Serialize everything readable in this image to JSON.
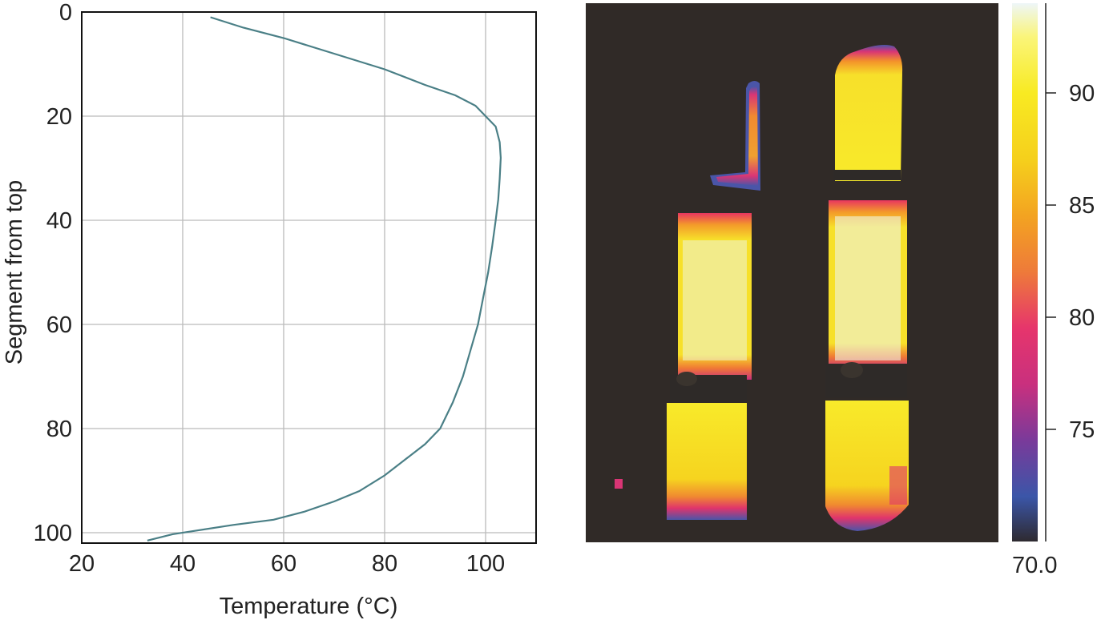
{
  "chart_data": [
    {
      "type": "line",
      "title": "",
      "xlabel": "Temperature (°C)",
      "ylabel": "Segment from top",
      "xlim": [
        20,
        110
      ],
      "ylim": [
        102,
        0
      ],
      "y_inverted": true,
      "grid": true,
      "xticks": [
        20,
        40,
        60,
        80,
        100
      ],
      "yticks": [
        0,
        20,
        40,
        60,
        80,
        100
      ],
      "line_color": "#4a7f86",
      "series": [
        {
          "x": [
            45.5,
            52,
            60,
            70,
            80,
            88,
            94,
            98,
            100,
            102,
            102.8,
            103,
            102.8,
            102.5,
            102,
            101.3,
            100.5,
            99.5,
            98.5,
            97,
            95.5,
            93.5,
            91,
            88,
            84,
            80,
            75,
            70,
            64,
            58,
            50,
            42,
            38,
            33
          ],
          "y": [
            1,
            3,
            5,
            8,
            11,
            14,
            16,
            18,
            20,
            22,
            25,
            28,
            32,
            36,
            40,
            45,
            50,
            55,
            60,
            65,
            70,
            75,
            80,
            83,
            86,
            89,
            92,
            94,
            96,
            97.5,
            98.5,
            99.7,
            100.3,
            101.5
          ]
        }
      ]
    },
    {
      "type": "heatmap",
      "title": "",
      "description_colors": [
        "#2f2a28",
        "#3b4fa8",
        "#9b2a86",
        "#d8256a",
        "#f08a1f",
        "#f6d21a",
        "#faf25a",
        "#e8f4f0"
      ],
      "colorbar": {
        "ticks": [
          75,
          80,
          85,
          90
        ],
        "bottom_label": "70.0",
        "range": [
          70,
          94
        ],
        "stops": [
          {
            "value": 70,
            "color": "#2e2a30"
          },
          {
            "value": 72,
            "color": "#3b56a8"
          },
          {
            "value": 74.5,
            "color": "#7a3a9a"
          },
          {
            "value": 77,
            "color": "#c9307e"
          },
          {
            "value": 79.5,
            "color": "#e6356c"
          },
          {
            "value": 82,
            "color": "#ee7a3a"
          },
          {
            "value": 84.5,
            "color": "#f3a321"
          },
          {
            "value": 87,
            "color": "#f5cf1c"
          },
          {
            "value": 90,
            "color": "#f8ea22"
          },
          {
            "value": 92.5,
            "color": "#faf57a"
          },
          {
            "value": 94,
            "color": "#eef6f8"
          }
        ]
      }
    }
  ]
}
